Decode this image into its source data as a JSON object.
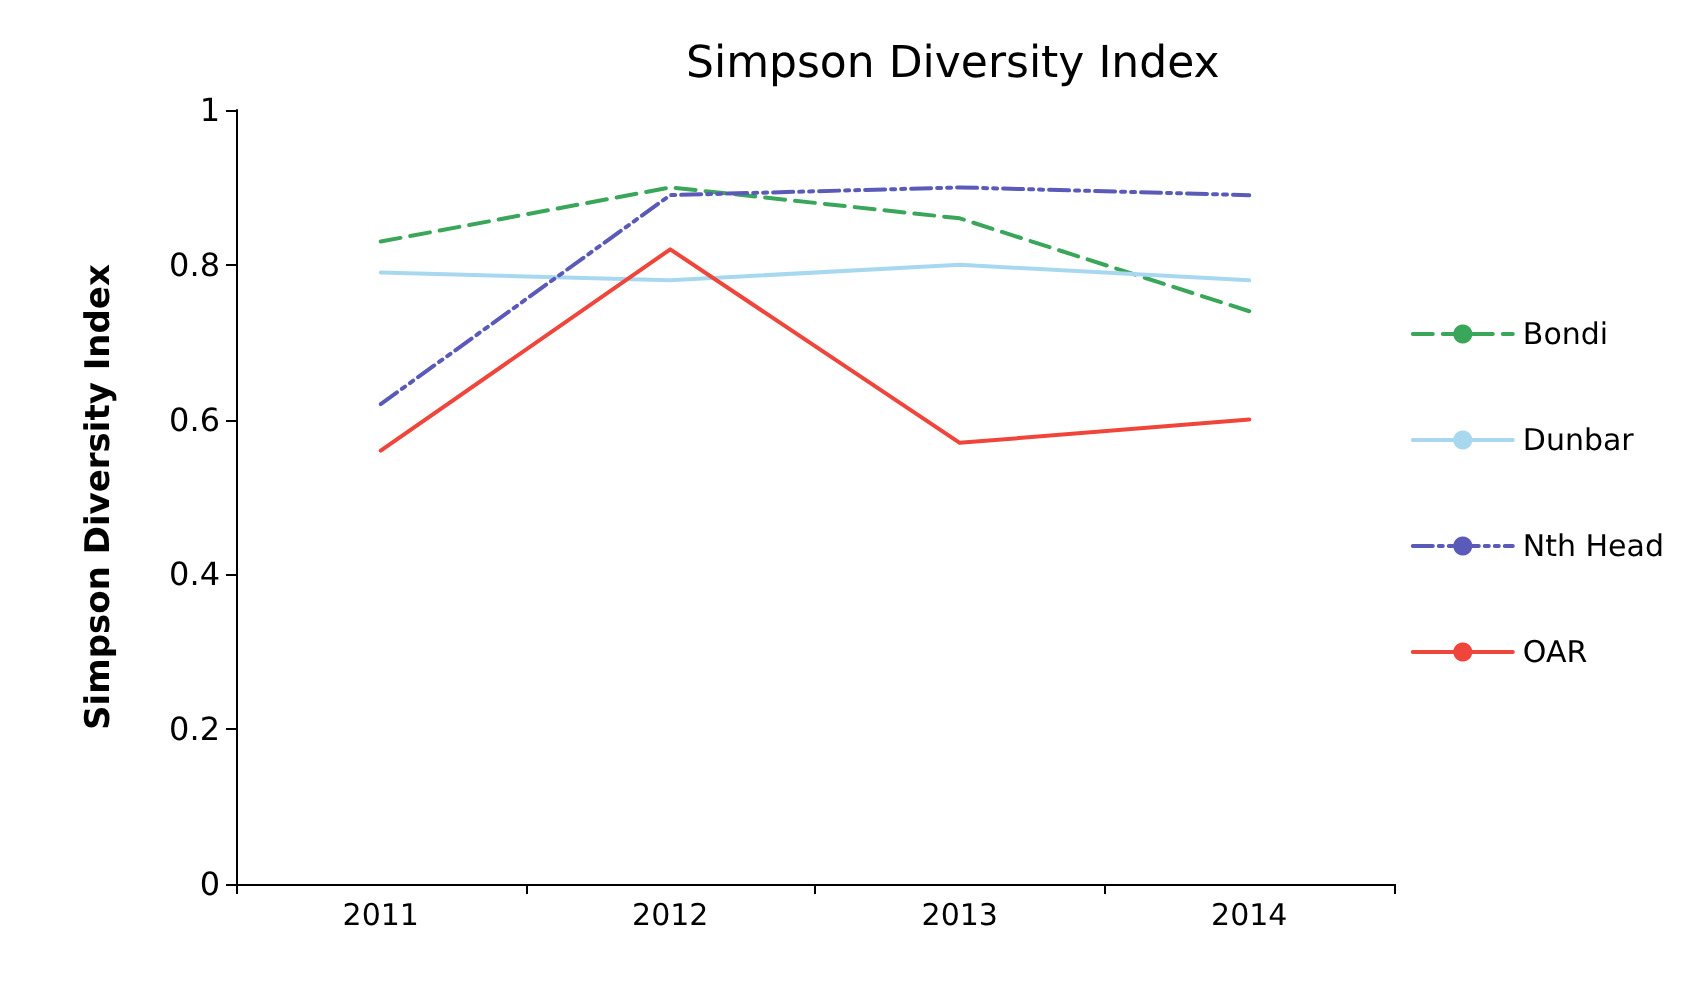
{
  "chart_data": {
    "type": "line",
    "title": "Simpson Diversity Index",
    "ylabel": "Simpson Diversity Index",
    "categories": [
      "2011",
      "2012",
      "2013",
      "2014"
    ],
    "series": [
      {
        "name": "Bondi",
        "color": "#3aa65a",
        "line_style": "dashed",
        "values": [
          0.83,
          0.9,
          0.86,
          0.74
        ]
      },
      {
        "name": "Dunbar",
        "color": "#a8d8f0",
        "line_style": "solid",
        "values": [
          0.79,
          0.78,
          0.8,
          0.78
        ]
      },
      {
        "name": "Nth Head",
        "color": "#5a5ab8",
        "line_style": "dotted",
        "values": [
          0.62,
          0.89,
          0.9,
          0.89
        ]
      },
      {
        "name": "OAR",
        "color": "#f0453a",
        "line_style": "solid",
        "values": [
          0.56,
          0.82,
          0.57,
          0.6
        ]
      }
    ],
    "ylim": [
      0,
      1
    ],
    "yticks": [
      0,
      0.2,
      0.4,
      0.6,
      0.8,
      1
    ],
    "grid": false,
    "legend": "right",
    "marker": "none"
  }
}
